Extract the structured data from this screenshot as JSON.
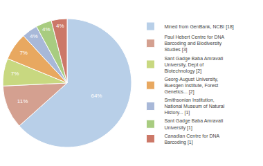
{
  "chart_data": {
    "type": "pie",
    "categories": [
      "Mined from GenBank, NCBI [18]",
      "Paul Hebert Centre for DNA\nBarcoding and Biodiversity\nStudies [3]",
      "Sant Gadge Baba Amravati\nUniversity, Dept of\nBiotechnology [2]",
      "Georg-August University,\nBuesgen Institute, Forest\nGenetics... [2]",
      "Smithsonian Institution,\nNational Museum of Natural\nHistory... [1]",
      "Sant Gadge Baba Amravati\nUniversity [1]",
      "Canadian Centre for DNA\nBarcoding [1]"
    ],
    "values": [
      64,
      11,
      7,
      7,
      4,
      4,
      4
    ],
    "value_labels": [
      "64%",
      "11%",
      "7%",
      "7%",
      "4%",
      "4%",
      "4%"
    ],
    "colors": [
      "#b8cfe8",
      "#d4a090",
      "#c8d880",
      "#e8a860",
      "#a8b8d8",
      "#a8cc80",
      "#cc7868"
    ],
    "data_labels": true,
    "legend": "right"
  }
}
